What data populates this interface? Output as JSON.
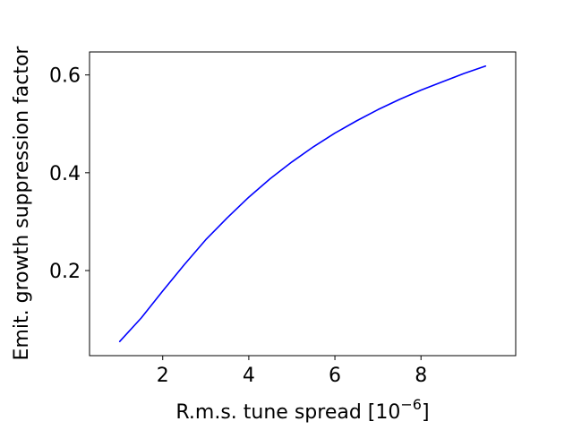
{
  "chart_data": {
    "type": "line",
    "title": "",
    "xlabel": "R.m.s. tune spread [10",
    "xlabel_sup": "−6",
    "xlabel_close": "]",
    "ylabel": "Emit. growth suppression factor",
    "xlim": [
      0.3,
      10.2
    ],
    "ylim": [
      0.026,
      0.647
    ],
    "x_ticks": [
      2,
      4,
      6,
      8
    ],
    "x_tick_labels": [
      "2",
      "4",
      "6",
      "8"
    ],
    "y_ticks": [
      0.2,
      0.4,
      0.6
    ],
    "y_tick_labels": [
      "0.2",
      "0.4",
      "0.6"
    ],
    "grid": false,
    "series": [
      {
        "color": "#0000ff",
        "x": [
          1.0,
          1.5,
          2.0,
          2.5,
          3.0,
          3.5,
          4.0,
          4.5,
          5.0,
          5.5,
          6.0,
          6.5,
          7.0,
          7.5,
          8.0,
          8.5,
          9.0,
          9.5
        ],
        "y": [
          0.055,
          0.103,
          0.158,
          0.212,
          0.263,
          0.308,
          0.35,
          0.388,
          0.422,
          0.453,
          0.481,
          0.506,
          0.529,
          0.55,
          0.569,
          0.586,
          0.603,
          0.618
        ]
      }
    ]
  }
}
